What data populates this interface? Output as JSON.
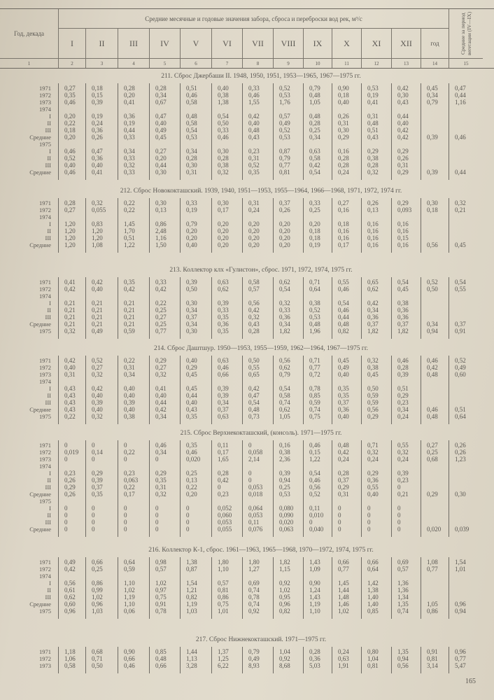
{
  "header": {
    "col1": "Год, декада",
    "group_title": "Средние месячные и годовые значения забора, сброса и переброски вод рек, м³/с",
    "months": [
      "I",
      "II",
      "III",
      "IV",
      "V",
      "VI",
      "VII",
      "VIII",
      "IX",
      "X",
      "XI",
      "XII",
      "год"
    ],
    "vegetation": "Средние за период вегетации (IV—IX)",
    "col_numbers": [
      "1",
      "2",
      "3",
      "4",
      "5",
      "6",
      "7",
      "8",
      "9",
      "10",
      "11",
      "12",
      "13",
      "14",
      "15"
    ]
  },
  "sections": [
    {
      "title": "211. Сброс Джербаши II. 1948, 1950, 1951, 1953—1965, 1967—1975 гг.",
      "rows": [
        [
          "1971",
          "0,27",
          "0,18",
          "0,28",
          "0,28",
          "0,51",
          "0,40",
          "0,33",
          "0,52",
          "0,79",
          "0,90",
          "0,53",
          "0,42",
          "0,45",
          "0,47"
        ],
        [
          "1972",
          "0,35",
          "0,15",
          "0,20",
          "0,34",
          "0,46",
          "0,38",
          "0,46",
          "0,53",
          "0,48",
          "0,18",
          "0,19",
          "0,30",
          "0,34",
          "0,44"
        ],
        [
          "1973",
          "0,46",
          "0,39",
          "0,41",
          "0,67",
          "0,58",
          "1,38",
          "1,55",
          "1,76",
          "1,05",
          "0,40",
          "0,41",
          "0,43",
          "0,79",
          "1,16"
        ],
        [
          "1974"
        ],
        [
          "I",
          "0,20",
          "0,19",
          "0,36",
          "0,47",
          "0,48",
          "0,54",
          "0,42",
          "0,57",
          "0,48",
          "0,26",
          "0,31",
          "0,44"
        ],
        [
          "II",
          "0,22",
          "0,24",
          "0,19",
          "0,40",
          "0,58",
          "0,50",
          "0,40",
          "0,49",
          "0,28",
          "0,31",
          "0,48",
          "0,40"
        ],
        [
          "III",
          "0,18",
          "0,36",
          "0,44",
          "0,49",
          "0,54",
          "0,33",
          "0,48",
          "0,52",
          "0,25",
          "0,30",
          "0,51",
          "0,42"
        ],
        [
          "Средние",
          "0,20",
          "0,26",
          "0,33",
          "0,45",
          "0,53",
          "0,46",
          "0,43",
          "0,53",
          "0,34",
          "0,29",
          "0,43",
          "0,42",
          "0,39",
          "0,46"
        ],
        [
          "1975"
        ],
        [
          "I",
          "0,46",
          "0,47",
          "0,34",
          "0,27",
          "0,34",
          "0,30",
          "0,23",
          "0,87",
          "0,63",
          "0,16",
          "0,29",
          "0,29"
        ],
        [
          "II",
          "0,52",
          "0,36",
          "0,33",
          "0,20",
          "0,28",
          "0,28",
          "0,31",
          "0,79",
          "0,58",
          "0,28",
          "0,38",
          "0,26"
        ],
        [
          "III",
          "0,40",
          "0,40",
          "0,32",
          "0,44",
          "0,30",
          "0,38",
          "0,52",
          "0,77",
          "0,42",
          "0,28",
          "0,28",
          "0,31"
        ],
        [
          "Средние",
          "0,46",
          "0,41",
          "0,33",
          "0,30",
          "0,31",
          "0,32",
          "0,35",
          "0,81",
          "0,54",
          "0,24",
          "0,32",
          "0,29",
          "0,39",
          "0,44"
        ]
      ]
    },
    {
      "title": "212. Сброс Новококташский. 1939, 1940, 1951—1953, 1955—1964, 1966—1968, 1971, 1972, 1974 гг.",
      "rows": [
        [
          "1971",
          "0,28",
          "0,32",
          "0,22",
          "0,30",
          "0,33",
          "0,30",
          "0,31",
          "0,37",
          "0,33",
          "0,27",
          "0,26",
          "0,29",
          "0,30",
          "0,32"
        ],
        [
          "1972",
          "0,27",
          "0,055",
          "0,22",
          "0,13",
          "0,19",
          "0,17",
          "0,24",
          "0,26",
          "0,25",
          "0,16",
          "0,13",
          "0,093",
          "0,18",
          "0,21"
        ],
        [
          "1974"
        ],
        [
          "I",
          "1,20",
          "0,83",
          "1,45",
          "0,86",
          "0,79",
          "0,20",
          "0,20",
          "0,20",
          "0,20",
          "0,18",
          "0,16",
          "0,16"
        ],
        [
          "II",
          "1,20",
          "1,20",
          "1,70",
          "2,48",
          "0,20",
          "0,20",
          "0,20",
          "0,20",
          "0,18",
          "0,16",
          "0,16",
          "0,16"
        ],
        [
          "III",
          "1,20",
          "1,20",
          "0,51",
          "1,16",
          "0,20",
          "0,20",
          "0,20",
          "0,20",
          "0,18",
          "0,16",
          "0,16",
          "0,15"
        ],
        [
          "Средние",
          "1,20",
          "1,08",
          "1,22",
          "1,50",
          "0,40",
          "0,20",
          "0,20",
          "0,20",
          "0,19",
          "0,17",
          "0,16",
          "0,16",
          "0,56",
          "0,45"
        ]
      ]
    },
    {
      "title": "213. Коллектор клх «Гулистон», сброс. 1971, 1972, 1974, 1975 гг.",
      "rows": [
        [
          "1971",
          "0,41",
          "0,42",
          "0,35",
          "0,33",
          "0,39",
          "0,63",
          "0,58",
          "0,62",
          "0,71",
          "0,55",
          "0,65",
          "0,54",
          "0,52",
          "0,54"
        ],
        [
          "1972",
          "0,42",
          "0,40",
          "0,42",
          "0,42",
          "0,50",
          "0,62",
          "0,57",
          "0,54",
          "0,64",
          "0,46",
          "0,62",
          "0,45",
          "0,50",
          "0,55"
        ],
        [
          "1974"
        ],
        [
          "I",
          "0,21",
          "0,21",
          "0,21",
          "0,22",
          "0,30",
          "0,39",
          "0,56",
          "0,32",
          "0,38",
          "0,54",
          "0,42",
          "0,38"
        ],
        [
          "II",
          "0,21",
          "0,21",
          "0,21",
          "0,25",
          "0,34",
          "0,33",
          "0,42",
          "0,33",
          "0,52",
          "0,46",
          "0,34",
          "0,36"
        ],
        [
          "III",
          "0,21",
          "0,21",
          "0,21",
          "0,27",
          "0,37",
          "0,35",
          "0,32",
          "0,36",
          "0,53",
          "0,44",
          "0,36",
          "0,36"
        ],
        [
          "Средние",
          "0,21",
          "0,21",
          "0,21",
          "0,25",
          "0,34",
          "0,36",
          "0,43",
          "0,34",
          "0,48",
          "0,48",
          "0,37",
          "0,37",
          "0,34",
          "0,37"
        ],
        [
          "1975",
          "0,32",
          "0,49",
          "0,59",
          "0,77",
          "0,30",
          "0,35",
          "0,28",
          "1,82",
          "1,96",
          "0,82",
          "1,82",
          "1,82",
          "0,94",
          "0,91"
        ]
      ]
    },
    {
      "title": "214. Сброс Даштшур. 1950—1953, 1955—1959, 1962—1964, 1967—1975 гг.",
      "rows": [
        [
          "1971",
          "0,42",
          "0,52",
          "0,22",
          "0,29",
          "0,40",
          "0,63",
          "0,50",
          "0,56",
          "0,71",
          "0,45",
          "0,32",
          "0,46",
          "0,46",
          "0,52"
        ],
        [
          "1972",
          "0,40",
          "0,27",
          "0,31",
          "0,27",
          "0,29",
          "0,46",
          "0,55",
          "0,62",
          "0,77",
          "0,49",
          "0,38",
          "0,28",
          "0,42",
          "0,49"
        ],
        [
          "1973",
          "0,31",
          "0,32",
          "0,34",
          "0,32",
          "0,45",
          "0,66",
          "0,65",
          "0,79",
          "0,72",
          "0,40",
          "0,45",
          "0,39",
          "0,48",
          "0,60"
        ],
        [
          "1974"
        ],
        [
          "I",
          "0,43",
          "0,42",
          "0,40",
          "0,41",
          "0,45",
          "0,39",
          "0,42",
          "0,54",
          "0,78",
          "0,35",
          "0,50",
          "0,51"
        ],
        [
          "II",
          "0,43",
          "0,40",
          "0,40",
          "0,40",
          "0,44",
          "0,39",
          "0,47",
          "0,58",
          "0,85",
          "0,35",
          "0,59",
          "0,29"
        ],
        [
          "III",
          "0,43",
          "0,39",
          "0,39",
          "0,44",
          "0,40",
          "0,34",
          "0,54",
          "0,74",
          "0,59",
          "0,37",
          "0,59",
          "0,23"
        ],
        [
          "Средние",
          "0,43",
          "0,40",
          "0,40",
          "0,42",
          "0,43",
          "0,37",
          "0,48",
          "0,62",
          "0,74",
          "0,36",
          "0,56",
          "0,34",
          "0,46",
          "0,51"
        ],
        [
          "1975",
          "0,22",
          "0,32",
          "0,38",
          "0,34",
          "0,35",
          "0,63",
          "0,73",
          "1,05",
          "0,75",
          "0,40",
          "0,29",
          "0,24",
          "0,48",
          "0,64"
        ]
      ]
    },
    {
      "title": "215. Сброс Верхнекокташский, (консоль). 1971—1975 гг.",
      "rows": [
        [
          "1971",
          "0",
          "0",
          "0",
          "0,46",
          "0,35",
          "0,11",
          "0",
          "0,16",
          "0,46",
          "0,48",
          "0,71",
          "0,55",
          "0,27",
          "0,26"
        ],
        [
          "1972",
          "0,019",
          "0,14",
          "0,22",
          "0,34",
          "0,46",
          "0,17",
          "0,058",
          "0,38",
          "0,15",
          "0,42",
          "0,32",
          "0,32",
          "0,25",
          "0,26"
        ],
        [
          "1973",
          "0",
          "0",
          "0",
          "0",
          "0,020",
          "1,65",
          "2,14",
          "2,36",
          "1,22",
          "0,24",
          "0,24",
          "0,24",
          "0,68",
          "1,23"
        ],
        [
          "1974"
        ],
        [
          "I",
          "0,23",
          "0,29",
          "0,23",
          "0,29",
          "0,25",
          "0,28",
          "0",
          "0,39",
          "0,54",
          "0,28",
          "0,29",
          "0,39"
        ],
        [
          "II",
          "0,26",
          "0,39",
          "0,063",
          "0,35",
          "0,13",
          "0,42",
          "0",
          "0,94",
          "0,46",
          "0,37",
          "0,36",
          "0,23"
        ],
        [
          "III",
          "0,29",
          "0,37",
          "0,22",
          "0,31",
          "0,22",
          "0",
          "0,053",
          "0,25",
          "0,56",
          "0,29",
          "0,55",
          "0"
        ],
        [
          "Средние",
          "0,26",
          "0,35",
          "0,17",
          "0,32",
          "0,20",
          "0,23",
          "0,018",
          "0,53",
          "0,52",
          "0,31",
          "0,40",
          "0,21",
          "0,29",
          "0,30"
        ],
        [
          "1975"
        ],
        [
          "I",
          "0",
          "0",
          "0",
          "0",
          "0",
          "0,052",
          "0,064",
          "0,080",
          "0,11",
          "0",
          "0",
          "0"
        ],
        [
          "II",
          "0",
          "0",
          "0",
          "0",
          "0",
          "0,060",
          "0,053",
          "0,090",
          "0,010",
          "0",
          "0",
          "0"
        ],
        [
          "III",
          "0",
          "0",
          "0",
          "0",
          "0",
          "0,053",
          "0,11",
          "0,020",
          "0",
          "0",
          "0",
          "0"
        ],
        [
          "Средние",
          "0",
          "0",
          "0",
          "0",
          "0",
          "0,055",
          "0,076",
          "0,063",
          "0,040",
          "0",
          "0",
          "0",
          "0,020",
          "0,039"
        ]
      ]
    },
    {
      "title": "216. Коллектор К-1, сброс. 1961—1963, 1965—1968, 1970—1972, 1974, 1975 гг.",
      "rows": [
        [
          "1971",
          "0,49",
          "0,66",
          "0,64",
          "0,98",
          "1,38",
          "1,80",
          "1,80",
          "1,82",
          "1,43",
          "0,66",
          "0,66",
          "0,69",
          "1,08",
          "1,54"
        ],
        [
          "1972",
          "0,42",
          "0,25",
          "0,59",
          "0,57",
          "0,87",
          "1,10",
          "1,27",
          "1,15",
          "1,09",
          "0,77",
          "0,64",
          "0,57",
          "0,77",
          "1,01"
        ],
        [
          "1974"
        ],
        [
          "I",
          "0,56",
          "0,86",
          "1,10",
          "1,02",
          "1,54",
          "0,57",
          "0,69",
          "0,92",
          "0,90",
          "1,45",
          "1,42",
          "1,36"
        ],
        [
          "II",
          "0,61",
          "0,99",
          "1,02",
          "0,97",
          "1,21",
          "0,81",
          "0,74",
          "1,02",
          "1,24",
          "1,44",
          "1,38",
          "1,36"
        ],
        [
          "III",
          "0,62",
          "1,02",
          "1,19",
          "0,75",
          "0,82",
          "0,86",
          "0,78",
          "0,95",
          "1,43",
          "1,48",
          "1,40",
          "1,34"
        ],
        [
          "Средние",
          "0,60",
          "0,96",
          "1,10",
          "0,91",
          "1,19",
          "0,75",
          "0,74",
          "0,96",
          "1,19",
          "1,46",
          "1,40",
          "1,35",
          "1,05",
          "0,96"
        ],
        [
          "1975",
          "0,96",
          "1,03",
          "0,06",
          "0,78",
          "1,03",
          "1,01",
          "0,92",
          "0,82",
          "1,10",
          "1,02",
          "0,85",
          "0,74",
          "0,86",
          "0,94"
        ]
      ]
    },
    {
      "title": "217. Сброс Нижнекокташский. 1971—1975 гг.",
      "rows": [
        [
          "1971",
          "1,18",
          "0,68",
          "0,90",
          "0,85",
          "1,44",
          "1,37",
          "0,79",
          "1,04",
          "0,28",
          "0,24",
          "0,80",
          "1,35",
          "0,91",
          "0,96"
        ],
        [
          "1972",
          "1,06",
          "0,71",
          "0,66",
          "0,48",
          "1,13",
          "1,25",
          "0,49",
          "0,92",
          "0,36",
          "0,63",
          "1,04",
          "0,94",
          "0,81",
          "0,77"
        ],
        [
          "1973",
          "0,58",
          "0,50",
          "0,46",
          "0,66",
          "3,28",
          "6,22",
          "8,93",
          "8,68",
          "5,03",
          "1,91",
          "0,81",
          "0,56",
          "3,14",
          "5,47"
        ]
      ]
    }
  ],
  "page_number": "165"
}
